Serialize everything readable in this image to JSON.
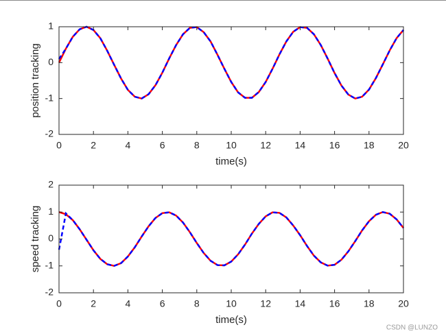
{
  "chart_data": [
    {
      "type": "line",
      "ylabel": "position tracking",
      "xlabel": "time(s)",
      "x": [
        0,
        0.4,
        0.8,
        1.2,
        1.6,
        2.0,
        2.4,
        2.8,
        3.2,
        3.6,
        4.0,
        4.4,
        4.8,
        5.2,
        5.6,
        6.0,
        6.4,
        6.8,
        7.2,
        7.6,
        8.0,
        8.4,
        8.8,
        9.2,
        9.6,
        10.0,
        10.4,
        10.8,
        11.2,
        11.6,
        12.0,
        12.4,
        12.8,
        13.2,
        13.6,
        14.0,
        14.4,
        14.8,
        15.2,
        15.6,
        16.0,
        16.4,
        16.8,
        17.2,
        17.6,
        18.0,
        18.4,
        18.8,
        19.2,
        19.6,
        20.0
      ],
      "series": [
        {
          "color": "#ff0000",
          "dash": false,
          "values": [
            0,
            0.39,
            0.72,
            0.93,
            1.0,
            0.91,
            0.68,
            0.33,
            -0.06,
            -0.44,
            -0.76,
            -0.95,
            -1.0,
            -0.88,
            -0.63,
            -0.28,
            0.12,
            0.49,
            0.79,
            0.97,
            0.99,
            0.85,
            0.59,
            0.22,
            -0.17,
            -0.54,
            -0.83,
            -0.98,
            -0.98,
            -0.82,
            -0.54,
            -0.17,
            0.23,
            0.59,
            0.86,
            0.99,
            0.97,
            0.79,
            0.49,
            0.11,
            -0.29,
            -0.64,
            -0.89,
            -1.0,
            -0.95,
            -0.75,
            -0.43,
            -0.05,
            0.34,
            0.68,
            0.91
          ]
        },
        {
          "color": "#0000ff",
          "dash": true,
          "values": [
            0.1,
            0.39,
            0.72,
            0.93,
            1.0,
            0.91,
            0.68,
            0.33,
            -0.06,
            -0.44,
            -0.76,
            -0.95,
            -1.0,
            -0.88,
            -0.63,
            -0.28,
            0.12,
            0.49,
            0.79,
            0.97,
            0.99,
            0.85,
            0.59,
            0.22,
            -0.17,
            -0.54,
            -0.83,
            -0.98,
            -0.98,
            -0.82,
            -0.54,
            -0.17,
            0.23,
            0.59,
            0.86,
            0.99,
            0.97,
            0.79,
            0.49,
            0.11,
            -0.29,
            -0.64,
            -0.89,
            -1.0,
            -0.95,
            -0.75,
            -0.43,
            -0.05,
            0.34,
            0.68,
            0.91
          ]
        }
      ],
      "xlim": [
        0,
        20
      ],
      "xticks": [
        0,
        2,
        4,
        6,
        8,
        10,
        12,
        14,
        16,
        18,
        20
      ],
      "ylim": [
        -2,
        1
      ],
      "yticks": [
        -2,
        -1,
        0,
        1
      ]
    },
    {
      "type": "line",
      "ylabel": "speed tracking",
      "xlabel": "time(s)",
      "x": [
        0,
        0.4,
        0.8,
        1.2,
        1.6,
        2.0,
        2.4,
        2.8,
        3.2,
        3.6,
        4.0,
        4.4,
        4.8,
        5.2,
        5.6,
        6.0,
        6.4,
        6.8,
        7.2,
        7.6,
        8.0,
        8.4,
        8.8,
        9.2,
        9.6,
        10.0,
        10.4,
        10.8,
        11.2,
        11.6,
        12.0,
        12.4,
        12.8,
        13.2,
        13.6,
        14.0,
        14.4,
        14.8,
        15.2,
        15.6,
        16.0,
        16.4,
        16.8,
        17.2,
        17.6,
        18.0,
        18.4,
        18.8,
        19.2,
        19.6,
        20.0
      ],
      "series": [
        {
          "color": "#ff0000",
          "dash": false,
          "values": [
            1,
            0.92,
            0.7,
            0.36,
            -0.03,
            -0.42,
            -0.74,
            -0.94,
            -1.0,
            -0.9,
            -0.65,
            -0.31,
            0.09,
            0.47,
            0.78,
            0.96,
            0.99,
            0.87,
            0.61,
            0.25,
            -0.15,
            -0.52,
            -0.81,
            -0.97,
            -0.98,
            -0.84,
            -0.57,
            -0.21,
            0.2,
            0.56,
            0.84,
            0.99,
            0.97,
            0.8,
            0.5,
            0.14,
            -0.26,
            -0.62,
            -0.87,
            -0.99,
            -0.96,
            -0.77,
            -0.46,
            -0.08,
            0.32,
            0.66,
            0.9,
            1.0,
            0.94,
            0.73,
            0.41
          ]
        },
        {
          "color": "#0000ff",
          "dash": true,
          "values": [
            -0.4,
            0.95,
            0.7,
            0.36,
            -0.03,
            -0.42,
            -0.74,
            -0.94,
            -1.0,
            -0.9,
            -0.65,
            -0.31,
            0.09,
            0.47,
            0.78,
            0.96,
            0.99,
            0.87,
            0.61,
            0.25,
            -0.15,
            -0.52,
            -0.81,
            -0.97,
            -0.98,
            -0.84,
            -0.57,
            -0.21,
            0.2,
            0.56,
            0.84,
            0.99,
            0.97,
            0.8,
            0.5,
            0.14,
            -0.26,
            -0.62,
            -0.87,
            -0.99,
            -0.96,
            -0.77,
            -0.46,
            -0.08,
            0.32,
            0.66,
            0.9,
            1.0,
            0.94,
            0.73,
            0.41
          ]
        }
      ],
      "xlim": [
        0,
        20
      ],
      "xticks": [
        0,
        2,
        4,
        6,
        8,
        10,
        12,
        14,
        16,
        18,
        20
      ],
      "ylim": [
        -2,
        2
      ],
      "yticks": [
        -2,
        -1,
        0,
        1,
        2
      ]
    }
  ],
  "watermark": "CSDN @LUNZO"
}
